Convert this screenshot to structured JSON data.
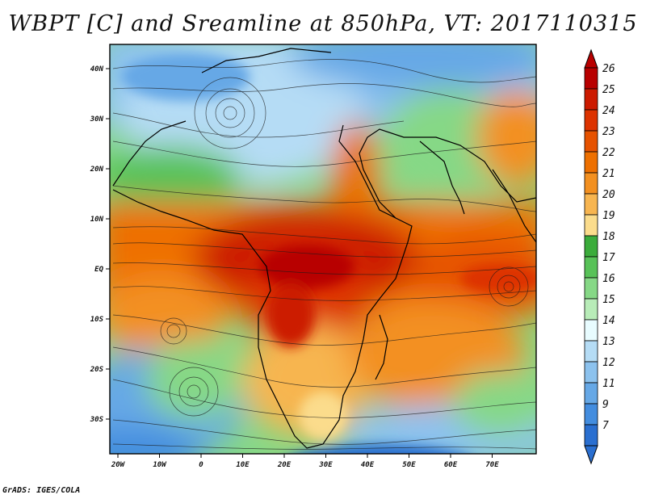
{
  "title": "WBPT [C] and Sreamline at 850hPa, VT: 2017110315",
  "footer": "GrADS: IGES/COLA",
  "axes": {
    "lat_ticks": [
      "40N",
      "30N",
      "20N",
      "10N",
      "EQ",
      "10S",
      "20S",
      "30S"
    ],
    "lon_ticks": [
      "20W",
      "10W",
      "0",
      "10E",
      "20E",
      "30E",
      "40E",
      "50E",
      "60E",
      "70E"
    ]
  },
  "colorbar": {
    "labels": [
      "26",
      "25",
      "24",
      "23",
      "22",
      "21",
      "20",
      "19",
      "18",
      "17",
      "16",
      "15",
      "14",
      "13",
      "12",
      "11",
      "9",
      "7"
    ],
    "colors": [
      "#b80000",
      "#cc1a00",
      "#dd3300",
      "#e65200",
      "#ee7000",
      "#f39020",
      "#f7b550",
      "#fbdc8c",
      "#3bac3b",
      "#58c258",
      "#86d886",
      "#b8ecb8",
      "#e8fcff",
      "#b5dcf5",
      "#8cc2ee",
      "#66a8e6",
      "#438ddf",
      "#2a6fd0"
    ]
  },
  "map": {
    "regions": [
      {
        "name": "warm-north-africa-band",
        "color": "#ee7000"
      },
      {
        "name": "hot-central-africa",
        "color": "#cc1a00"
      },
      {
        "name": "green-sahara-zone",
        "color": "#58c258"
      },
      {
        "name": "cool-north-atlantic",
        "color": "#8cc2ee"
      },
      {
        "name": "cool-south-atlantic",
        "color": "#66a8e6"
      },
      {
        "name": "cool-south-indian",
        "color": "#438ddf"
      },
      {
        "name": "warm-indian-ocean",
        "color": "#f39020"
      }
    ]
  }
}
